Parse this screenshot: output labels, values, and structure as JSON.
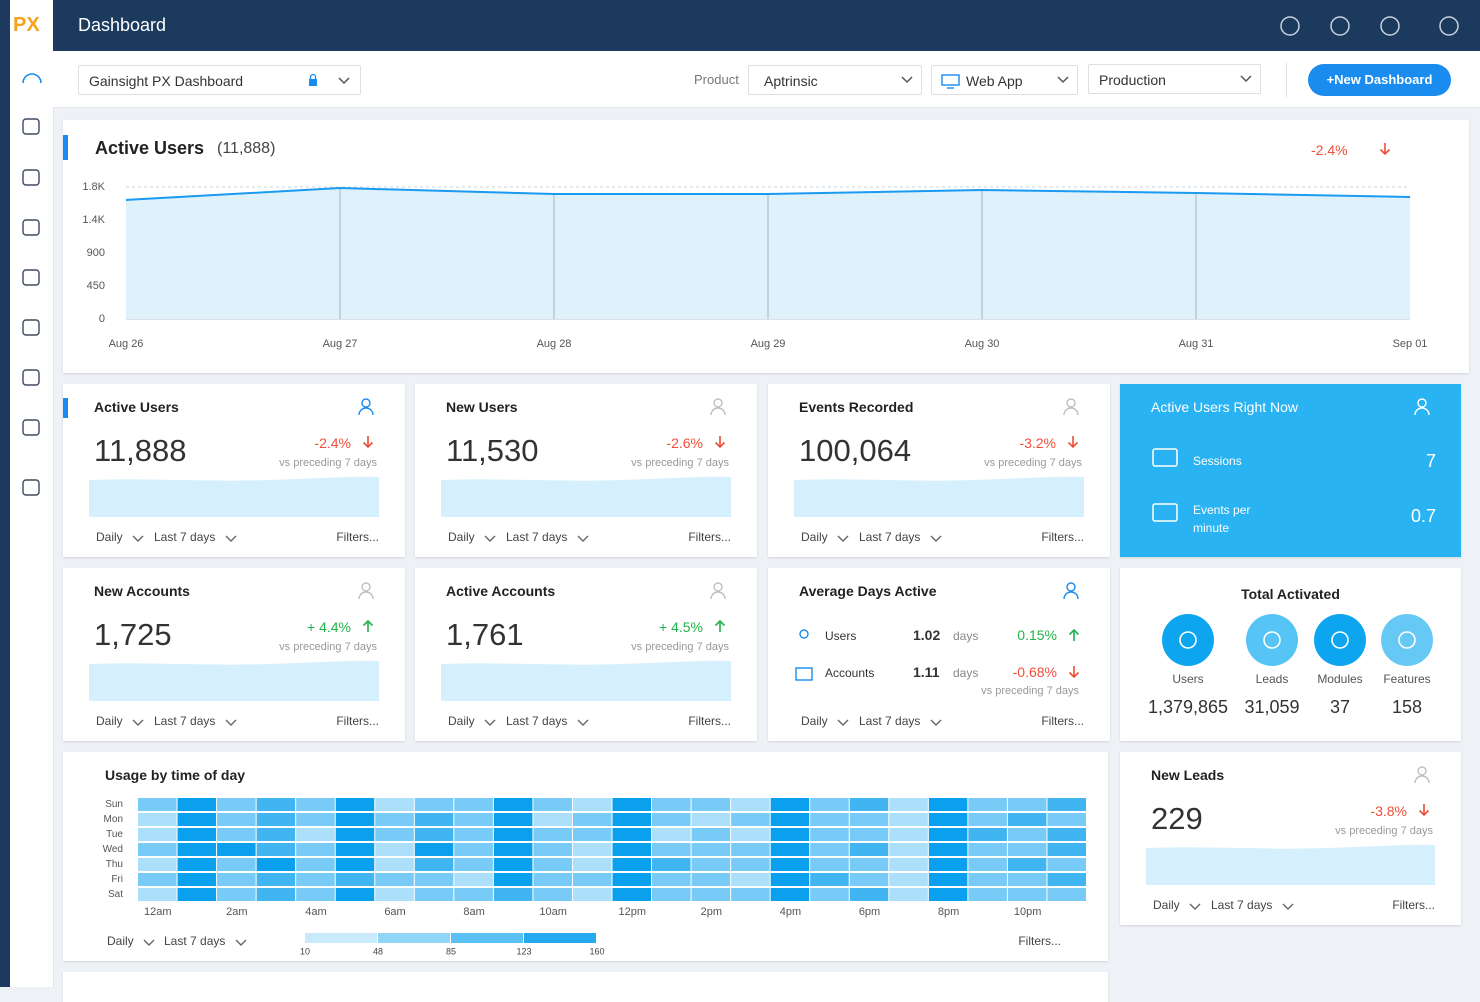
{
  "header": {
    "logo": "PX",
    "title": "Dashboard"
  },
  "toolbar": {
    "dashboard": "Gainsight PX Dashboard",
    "product_label": "Product",
    "product": "Aptrinsic",
    "app": "Web App",
    "environment": "Production",
    "new_button": "+New Dashboard"
  },
  "active_users_chart": {
    "type": "line",
    "title": "Active Users",
    "total": "(11,888)",
    "change": "-2.4%",
    "categories": [
      "Aug 26",
      "Aug 27",
      "Aug 28",
      "Aug 29",
      "Aug 30",
      "Aug 31",
      "Sep 01"
    ],
    "values": [
      1623,
      1786,
      1705,
      1705,
      1759,
      1718,
      1664
    ],
    "color": "#1a9af0",
    "fill": "#dff2fc",
    "ylim": [
      0,
      1800
    ],
    "yticks": [
      0,
      450,
      900,
      {
        "value": 1350,
        "label": "1.4K"
      },
      {
        "value": 1800,
        "label": "1.8K"
      }
    ],
    "grid": true
  },
  "metric_cards": [
    {
      "title": "Active Users",
      "value": "11,888",
      "change": "-2.4%",
      "note": "vs preceding 7 days",
      "interval": "Daily",
      "range": "Last 7 days",
      "filters": "Filters..."
    },
    {
      "title": "New Users",
      "value": "11,530",
      "change": "-2.6%",
      "note": "vs preceding 7 days",
      "interval": "Daily",
      "range": "Last 7 days",
      "filters": "Filters..."
    },
    {
      "title": "Events Recorded",
      "value": "100,064",
      "change": "-3.2%",
      "note": "vs preceding 7 days",
      "interval": "Daily",
      "range": "Last 7 days",
      "filters": "Filters..."
    },
    {
      "title": "New Accounts",
      "value": "1,725",
      "change": "+ 4.4%",
      "note": "vs preceding 7 days",
      "interval": "Daily",
      "range": "Last 7 days",
      "filters": "Filters..."
    },
    {
      "title": "Active Accounts",
      "value": "1,761",
      "change": "+ 4.5%",
      "note": "vs preceding 7 days",
      "interval": "Daily",
      "range": "Last 7 days",
      "filters": "Filters..."
    },
    {
      "title": "New Leads",
      "value": "229",
      "change": "-3.8%",
      "note": "vs preceding 7 days",
      "interval": "Daily",
      "range": "Last 7 days",
      "filters": "Filters..."
    }
  ],
  "average_days_active": {
    "title": "Average Days Active",
    "rows": [
      {
        "label": "Users",
        "value": "1.02",
        "unit": "days",
        "change": "0.15%"
      },
      {
        "label": "Accounts",
        "value": "1.11",
        "unit": "days",
        "change": "-0.68%"
      }
    ],
    "note": "vs preceding 7 days",
    "interval": "Daily",
    "range": "Last 7 days",
    "filters": "Filters..."
  },
  "right_now": {
    "title": "Active Users Right Now",
    "items": [
      {
        "label": "Sessions",
        "value": "7"
      },
      {
        "label": "Events per minute",
        "value": "0.7"
      }
    ]
  },
  "total_activated": {
    "title": "Total Activated",
    "items": [
      {
        "label": "Users",
        "value": "1,379,865"
      },
      {
        "label": "Leads",
        "value": "31,059"
      },
      {
        "label": "Modules",
        "value": "37"
      },
      {
        "label": "Features",
        "value": "158"
      }
    ]
  },
  "heatmap": {
    "type": "heatmap",
    "title": "Usage by time of day",
    "rows": [
      "Sun",
      "Mon",
      "Tue",
      "Wed",
      "Thu",
      "Fri",
      "Sat"
    ],
    "x_labels": [
      "12am",
      "2am",
      "4am",
      "6am",
      "8am",
      "10am",
      "12pm",
      "2pm",
      "4pm",
      "6pm",
      "8pm",
      "10pm"
    ],
    "values": [
      [
        85,
        160,
        85,
        123,
        85,
        160,
        48,
        85,
        85,
        160,
        85,
        48,
        160,
        85,
        85,
        48,
        160,
        85,
        123,
        48,
        160,
        85,
        85,
        123
      ],
      [
        48,
        160,
        85,
        123,
        85,
        160,
        85,
        123,
        85,
        160,
        48,
        85,
        160,
        85,
        48,
        85,
        160,
        85,
        85,
        48,
        160,
        85,
        123,
        85
      ],
      [
        48,
        160,
        85,
        123,
        48,
        160,
        85,
        123,
        85,
        160,
        85,
        85,
        160,
        48,
        85,
        48,
        160,
        85,
        85,
        48,
        160,
        123,
        85,
        123
      ],
      [
        85,
        160,
        160,
        123,
        85,
        160,
        48,
        160,
        85,
        160,
        85,
        48,
        160,
        85,
        85,
        85,
        160,
        85,
        123,
        48,
        160,
        85,
        85,
        123
      ],
      [
        48,
        160,
        85,
        160,
        85,
        160,
        48,
        123,
        85,
        160,
        85,
        48,
        160,
        123,
        85,
        85,
        160,
        85,
        85,
        48,
        160,
        85,
        123,
        85
      ],
      [
        85,
        160,
        85,
        123,
        85,
        123,
        85,
        85,
        48,
        160,
        85,
        85,
        160,
        85,
        85,
        48,
        160,
        123,
        85,
        48,
        160,
        85,
        85,
        123
      ],
      [
        48,
        160,
        85,
        123,
        85,
        160,
        48,
        85,
        85,
        123,
        85,
        48,
        160,
        85,
        85,
        85,
        160,
        85,
        123,
        48,
        160,
        85,
        85,
        85
      ]
    ],
    "legend_ticks": [
      10,
      48,
      85,
      123,
      160
    ],
    "interval": "Daily",
    "range": "Last 7 days",
    "filters": "Filters..."
  }
}
